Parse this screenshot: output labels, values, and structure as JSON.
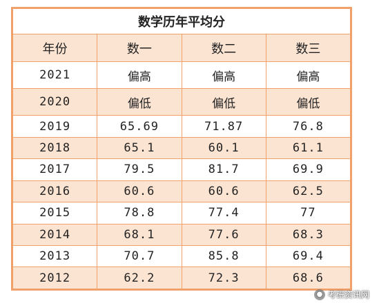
{
  "table": {
    "title": "数学历年平均分",
    "headers": [
      "年份",
      "数一",
      "数二",
      "数三"
    ],
    "rows": [
      {
        "year": "2021",
        "m1": "偏高",
        "m2": "偏高",
        "m3": "偏高"
      },
      {
        "year": "2020",
        "m1": "偏低",
        "m2": "偏低",
        "m3": "偏低"
      },
      {
        "year": "2019",
        "m1": "65.69",
        "m2": "71.87",
        "m3": "76.8"
      },
      {
        "year": "2018",
        "m1": "65.1",
        "m2": "60.1",
        "m3": "61.1"
      },
      {
        "year": "2017",
        "m1": "79.5",
        "m2": "81.7",
        "m3": "69.9"
      },
      {
        "year": "2016",
        "m1": "60.6",
        "m2": "60.6",
        "m3": "62.5"
      },
      {
        "year": "2015",
        "m1": "78.8",
        "m2": "77.4",
        "m3": "77"
      },
      {
        "year": "2014",
        "m1": "68.1",
        "m2": "77.6",
        "m3": "68.3"
      },
      {
        "year": "2013",
        "m1": "70.7",
        "m2": "85.8",
        "m3": "69.4"
      },
      {
        "year": "2012",
        "m1": "62.2",
        "m2": "72.3",
        "m3": "68.6"
      }
    ]
  },
  "watermark": {
    "icon": "wechat-icon",
    "text": "考研资讯网"
  },
  "colors": {
    "border": "#f2a06a",
    "shade": "#fce4d3"
  }
}
